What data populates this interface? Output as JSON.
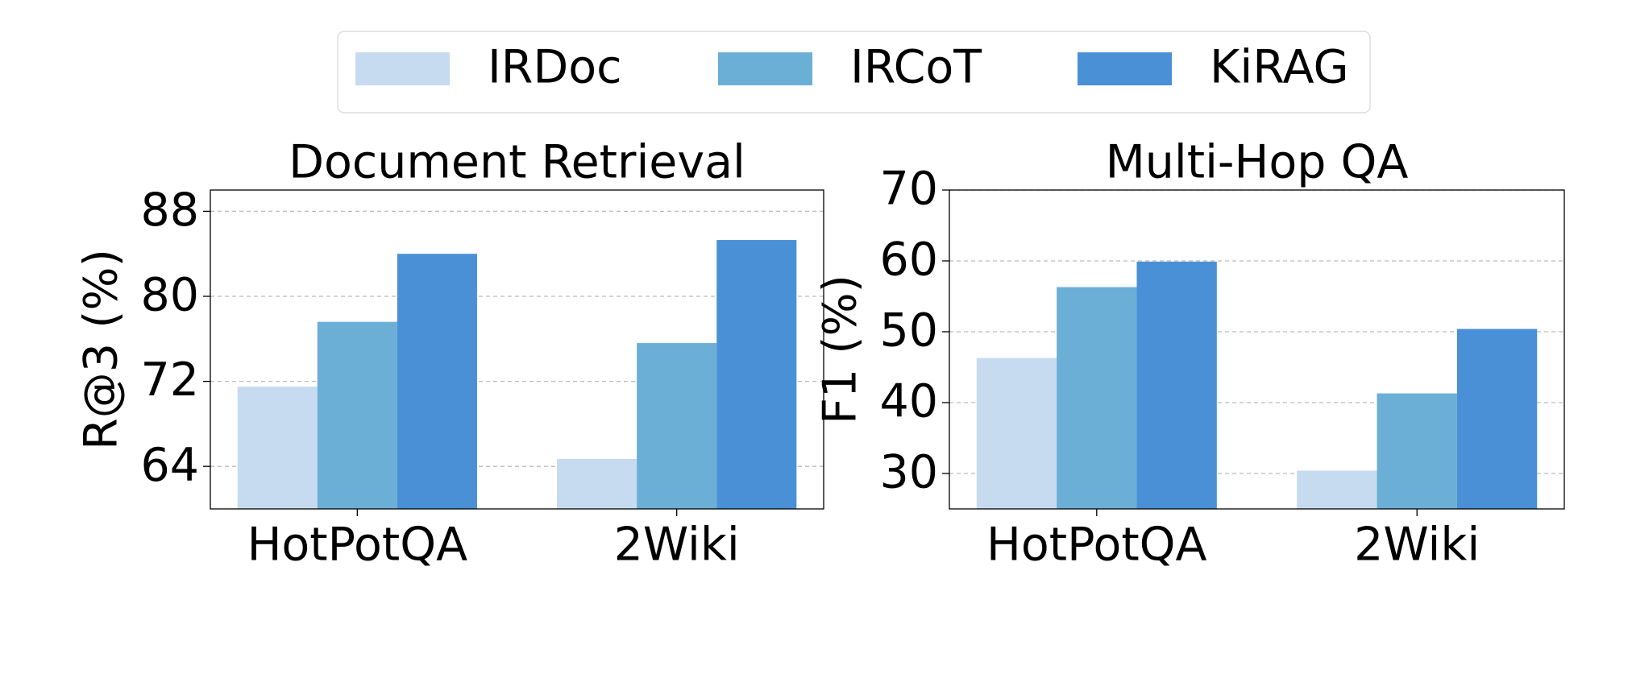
{
  "chart_data": [
    {
      "type": "bar",
      "title": "Document Retrieval",
      "y_label": "R@3 (%)",
      "categories": [
        "HotPotQA",
        "2Wiki"
      ],
      "series": [
        {
          "name": "IRDoc",
          "color": "#c6dbef",
          "values": [
            71.5,
            64.7
          ]
        },
        {
          "name": "IRCoT",
          "color": "#6baed6",
          "values": [
            77.6,
            75.6
          ]
        },
        {
          "name": "KiRAG",
          "color": "#4a90d6",
          "values": [
            84.0,
            85.3
          ]
        }
      ],
      "ylim": [
        60,
        90
      ],
      "yticks": [
        64,
        72,
        80,
        88
      ],
      "grid": true
    },
    {
      "type": "bar",
      "title": "Multi-Hop QA",
      "y_label": "F1 (%)",
      "categories": [
        "HotPotQA",
        "2Wiki"
      ],
      "series": [
        {
          "name": "IRDoc",
          "color": "#c6dbef",
          "values": [
            46.3,
            30.4
          ]
        },
        {
          "name": "IRCoT",
          "color": "#6baed6",
          "values": [
            56.3,
            41.3
          ]
        },
        {
          "name": "KiRAG",
          "color": "#4a90d6",
          "values": [
            59.9,
            50.4
          ]
        }
      ],
      "ylim": [
        25,
        70
      ],
      "yticks": [
        30,
        40,
        50,
        60,
        70
      ],
      "grid": true
    }
  ]
}
